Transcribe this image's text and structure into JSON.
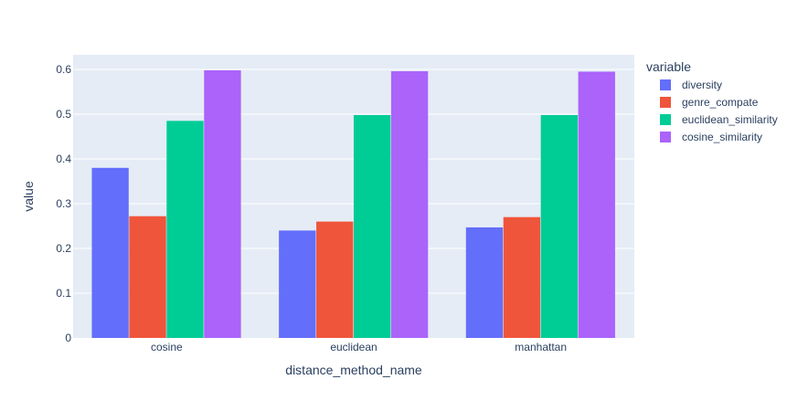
{
  "chart_data": {
    "type": "bar",
    "barmode": "group",
    "xlabel": "distance_method_name",
    "ylabel": "value",
    "categories": [
      "cosine",
      "euclidean",
      "manhattan"
    ],
    "ylim": [
      0,
      0.62
    ],
    "yticks": [
      0,
      0.1,
      0.2,
      0.3,
      0.4,
      0.5,
      0.6
    ],
    "ytick_labels": [
      "0",
      "0.1",
      "0.2",
      "0.3",
      "0.4",
      "0.5",
      "0.6"
    ],
    "grid": true,
    "legend_title": "variable",
    "legend_position": "right",
    "series": [
      {
        "name": "diversity",
        "color": "#636efa",
        "values": [
          0.38,
          0.24,
          0.247
        ]
      },
      {
        "name": "genre_compate",
        "color": "#ef553b",
        "values": [
          0.272,
          0.26,
          0.27
        ]
      },
      {
        "name": "euclidean_similarity",
        "color": "#00cc96",
        "values": [
          0.485,
          0.498,
          0.498
        ]
      },
      {
        "name": "cosine_similarity",
        "color": "#ab63fa",
        "values": [
          0.598,
          0.596,
          0.595
        ]
      }
    ]
  }
}
